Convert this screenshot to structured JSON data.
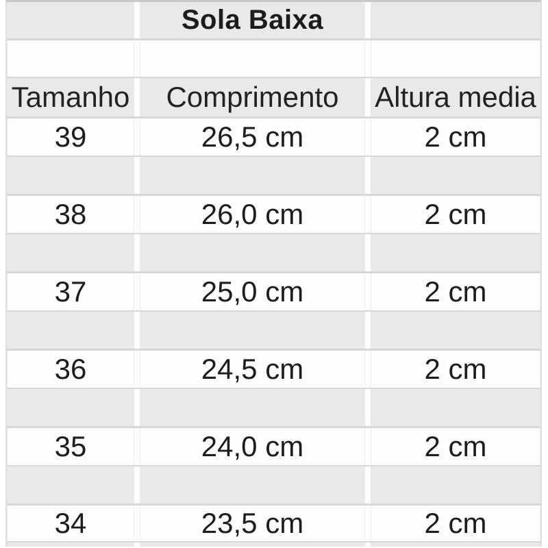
{
  "table": {
    "title": "Sola Baixa",
    "columns": [
      "Tamanho",
      "Comprimento",
      "Altura media"
    ],
    "rows": [
      {
        "size": "39",
        "length": "26,5 cm",
        "height": "2 cm"
      },
      {
        "size": "38",
        "length": "26,0 cm",
        "height": "2 cm"
      },
      {
        "size": "37",
        "length": "25,0 cm",
        "height": "2 cm"
      },
      {
        "size": "36",
        "length": "24,5 cm",
        "height": "2 cm"
      },
      {
        "size": "35",
        "length": "24,0 cm",
        "height": "2 cm"
      },
      {
        "size": "34",
        "length": "23,5 cm",
        "height": "2 cm"
      }
    ]
  },
  "colors": {
    "cell_gray": "#e9e9e9",
    "cell_white": "#fdfdfd",
    "grid_line": "#d7d7d7",
    "text": "#1d1d1d"
  },
  "chart_data": {
    "type": "table",
    "title": "Sola Baixa",
    "columns": [
      "Tamanho",
      "Comprimento",
      "Altura media"
    ],
    "rows": [
      [
        "39",
        "26,5 cm",
        "2 cm"
      ],
      [
        "38",
        "26,0 cm",
        "2 cm"
      ],
      [
        "37",
        "25,0 cm",
        "2 cm"
      ],
      [
        "36",
        "24,5 cm",
        "2 cm"
      ],
      [
        "35",
        "24,0 cm",
        "2 cm"
      ],
      [
        "34",
        "23,5 cm",
        "2 cm"
      ]
    ],
    "layout": {
      "header_background": "#e9e9e9",
      "row_background": "#fdfdfd",
      "spacer_rows_between_data": true
    }
  }
}
